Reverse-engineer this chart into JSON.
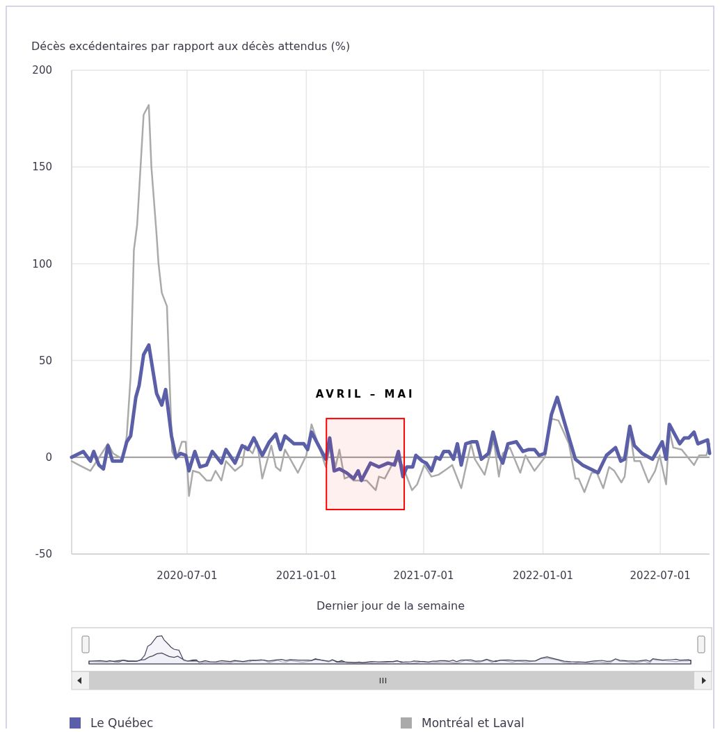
{
  "chart_data": {
    "type": "line",
    "ylabel": "Décès excédentaires par rapport aux décès attendus (%)",
    "xlabel": "Dernier jour de la semaine",
    "xlim": [
      "2020-01-05",
      "2022-09-15"
    ],
    "xticks": [
      "2020-07-01",
      "2021-01-01",
      "2021-07-01",
      "2022-01-01",
      "2022-07-01"
    ],
    "ylim": [
      -50,
      200
    ],
    "yticks": [
      -50,
      0,
      50,
      100,
      150,
      200
    ],
    "grid": true,
    "legend": "bottom",
    "line_style": "solid",
    "marker": "none",
    "ref_lines": [
      {
        "axis": "y",
        "value": 0,
        "color": "#9a9a9a"
      }
    ],
    "bands": [
      {
        "axis": "x",
        "from": "2021-02-01",
        "to": "2021-06-01",
        "label": "AVRIL – MAI",
        "color": "#ff0000"
      }
    ],
    "series": [
      {
        "name": "Montréal et Laval",
        "color": "#aaaaaa",
        "x": [
          "2020-01-05",
          "2020-01-16",
          "2020-02-03",
          "2020-03-01",
          "2020-03-09",
          "2020-03-24",
          "2020-03-30",
          "2020-04-05",
          "2020-04-10",
          "2020-04-15",
          "2020-04-25",
          "2020-05-03",
          "2020-05-07",
          "2020-05-15",
          "2020-05-18",
          "2020-05-23",
          "2020-05-31",
          "2020-06-03",
          "2020-06-08",
          "2020-06-14",
          "2020-06-23",
          "2020-06-29",
          "2020-07-04",
          "2020-07-10",
          "2020-07-20",
          "2020-07-31",
          "2020-08-07",
          "2020-08-14",
          "2020-08-23",
          "2020-08-30",
          "2020-09-13",
          "2020-09-24",
          "2020-09-29",
          "2020-10-10",
          "2020-10-17",
          "2020-10-25",
          "2020-11-08",
          "2020-11-15",
          "2020-11-22",
          "2020-11-29",
          "2020-12-19",
          "2021-01-01",
          "2021-01-09",
          "2021-01-31",
          "2021-02-07",
          "2021-02-15",
          "2021-02-21",
          "2021-03-01",
          "2021-03-08",
          "2021-03-15",
          "2021-04-04",
          "2021-04-18",
          "2021-04-23",
          "2021-05-02",
          "2021-05-13",
          "2021-05-20",
          "2021-05-29",
          "2021-06-13",
          "2021-06-21",
          "2021-07-02",
          "2021-07-13",
          "2021-07-24",
          "2021-08-06",
          "2021-08-14",
          "2021-08-28",
          "2021-09-12",
          "2021-09-18",
          "2021-10-03",
          "2021-10-17",
          "2021-10-25",
          "2021-10-31",
          "2021-11-11",
          "2021-11-27",
          "2021-12-05",
          "2021-12-10",
          "2021-12-19",
          "2022-01-04",
          "2022-01-13",
          "2022-01-25",
          "2022-02-10",
          "2022-02-20",
          "2022-02-25",
          "2022-03-06",
          "2022-03-17",
          "2022-03-25",
          "2022-04-04",
          "2022-04-13",
          "2022-04-21",
          "2022-05-02",
          "2022-05-07",
          "2022-05-15",
          "2022-05-22",
          "2022-05-31",
          "2022-06-13",
          "2022-06-23",
          "2022-06-30",
          "2022-07-10",
          "2022-07-15",
          "2022-07-21",
          "2022-08-03",
          "2022-08-22",
          "2022-08-30",
          "2022-09-10",
          "2022-09-15"
        ],
        "values": [
          -2,
          -4,
          -7,
          7,
          2,
          -1,
          11,
          42,
          107,
          120,
          177,
          182,
          150,
          115,
          100,
          85,
          78,
          50,
          3,
          -1,
          8,
          8,
          -20,
          -7,
          -8,
          -12,
          -12,
          -7,
          -12,
          -2,
          -7,
          -4,
          6,
          2,
          8,
          -11,
          6,
          -5,
          -7,
          4,
          -8,
          1,
          17,
          -5,
          7,
          -5,
          4,
          -11,
          -10,
          -12,
          -12,
          -17,
          -10,
          -11,
          -4,
          -1,
          -4,
          -17,
          -14,
          -4,
          -10,
          -9,
          -6,
          -4,
          -16,
          7,
          -1,
          -9,
          9,
          -10,
          2,
          5,
          -8,
          1,
          -2,
          -7,
          0,
          20,
          19,
          7,
          -11,
          -11,
          -18,
          -8,
          -8,
          -16,
          -5,
          -7,
          -13,
          -10,
          14,
          -2,
          -2,
          -13,
          -7,
          1,
          -14,
          14,
          5,
          4,
          -4,
          1,
          1,
          7
        ]
      },
      {
        "name": "Le Québec",
        "color": "#5b5fa8",
        "x": [
          "2020-01-05",
          "2020-01-23",
          "2020-02-03",
          "2020-02-08",
          "2020-02-16",
          "2020-02-23",
          "2020-03-01",
          "2020-03-08",
          "2020-03-22",
          "2020-03-30",
          "2020-04-05",
          "2020-04-13",
          "2020-04-18",
          "2020-04-25",
          "2020-05-03",
          "2020-05-15",
          "2020-05-23",
          "2020-05-29",
          "2020-06-07",
          "2020-06-14",
          "2020-06-21",
          "2020-06-29",
          "2020-07-04",
          "2020-07-13",
          "2020-07-21",
          "2020-07-31",
          "2020-08-09",
          "2020-08-23",
          "2020-08-30",
          "2020-09-13",
          "2020-09-24",
          "2020-10-03",
          "2020-10-12",
          "2020-10-25",
          "2020-11-05",
          "2020-11-15",
          "2020-11-22",
          "2020-11-29",
          "2020-12-13",
          "2020-12-21",
          "2020-12-28",
          "2021-01-03",
          "2021-01-09",
          "2021-01-31",
          "2021-02-06",
          "2021-02-13",
          "2021-02-21",
          "2021-03-04",
          "2021-03-15",
          "2021-03-22",
          "2021-03-27",
          "2021-04-10",
          "2021-04-23",
          "2021-05-07",
          "2021-05-17",
          "2021-05-23",
          "2021-05-30",
          "2021-06-05",
          "2021-06-14",
          "2021-06-19",
          "2021-06-29",
          "2021-07-05",
          "2021-07-13",
          "2021-07-20",
          "2021-07-26",
          "2021-08-01",
          "2021-08-09",
          "2021-08-16",
          "2021-08-22",
          "2021-08-28",
          "2021-09-04",
          "2021-09-13",
          "2021-09-21",
          "2021-09-28",
          "2021-10-09",
          "2021-10-16",
          "2021-10-25",
          "2021-10-31",
          "2021-11-08",
          "2021-11-21",
          "2021-12-01",
          "2021-12-10",
          "2021-12-19",
          "2021-12-26",
          "2022-01-04",
          "2022-01-14",
          "2022-01-23",
          "2022-02-05",
          "2022-02-20",
          "2022-03-03",
          "2022-03-15",
          "2022-03-27",
          "2022-04-09",
          "2022-04-23",
          "2022-05-01",
          "2022-05-07",
          "2022-05-15",
          "2022-05-22",
          "2022-06-03",
          "2022-06-19",
          "2022-07-04",
          "2022-07-10",
          "2022-07-15",
          "2022-07-31",
          "2022-08-07",
          "2022-08-14",
          "2022-08-22",
          "2022-08-28",
          "2022-09-12",
          "2022-09-15"
        ],
        "values": [
          0,
          3,
          -2,
          3,
          -4,
          -6,
          6,
          -2,
          -2,
          8,
          11,
          31,
          37,
          53,
          58,
          33,
          27,
          35,
          11,
          0,
          2,
          1,
          -7,
          3,
          -5,
          -4,
          3,
          -3,
          4,
          -3,
          6,
          4,
          10,
          1,
          8,
          12,
          4,
          11,
          7,
          7,
          7,
          4,
          13,
          -1,
          10,
          -7,
          -6,
          -8,
          -11,
          -7,
          -12,
          -3,
          -5,
          -3,
          -4,
          3,
          -10,
          -5,
          -5,
          1,
          -2,
          -3,
          -7,
          0,
          -1,
          3,
          3,
          -1,
          7,
          -4,
          7,
          8,
          8,
          -1,
          2,
          13,
          1,
          -3,
          7,
          8,
          3,
          4,
          4,
          1,
          2,
          22,
          31,
          16,
          -1,
          -4,
          -6,
          -8,
          1,
          5,
          -2,
          -1,
          16,
          6,
          2,
          -1,
          8,
          -1,
          17,
          7,
          10,
          10,
          13,
          7,
          9,
          2
        ]
      }
    ]
  }
}
